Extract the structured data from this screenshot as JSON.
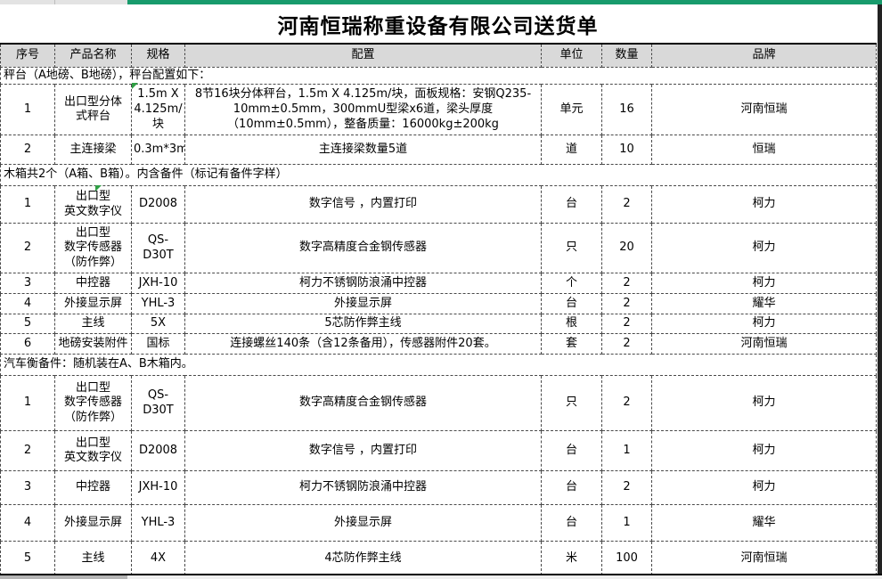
{
  "title": "河南恒瑞称重设备有限公司送货单",
  "columns": [
    "序号",
    "产品名称",
    "规格",
    "配置",
    "单位",
    "数量",
    "品牌"
  ],
  "sections": [
    {
      "header": "秤台（A地磅、B地磅），秤台配置如下：",
      "rows": [
        {
          "no": "1",
          "name": "出口型分体\n式秤台",
          "spec": "1.5m X\n4.125m/\n块",
          "config": "8节16块分体秤台，1.5m X 4.125m/块，面板规格：安钢Q235-10mm±0.5mm，300mmU型梁x6道，梁头厚度（10mm±0.5mm），整备质量：16000kg±200kg",
          "unit": "单元",
          "qty": "16",
          "brand": "河南恒瑞"
        },
        {
          "no": "2",
          "name": "主连接梁",
          "spec": "0.3m*3m",
          "config": "主连接梁数量5道",
          "unit": "道",
          "qty": "10",
          "brand": "恒瑞"
        }
      ]
    },
    {
      "header": "木箱共2个（A箱、B箱）。内含备件（标记有备件字样）",
      "rows": [
        {
          "no": "1",
          "name": "出口型\n英文数字仪",
          "spec": "D2008",
          "config": "数字信号 ，内置打印",
          "unit": "台",
          "qty": "2",
          "brand": "柯力"
        },
        {
          "no": "2",
          "name": "出口型\n数字传感器\n（防作弊）",
          "spec": "QS-D30T",
          "config": "数字高精度合金钢传感器",
          "unit": "只",
          "qty": "20",
          "brand": "柯力"
        },
        {
          "no": "3",
          "name": "中控器",
          "spec": "JXH-10",
          "config": "柯力不锈钢防浪涌中控器",
          "unit": "个",
          "qty": "2",
          "brand": "柯力"
        },
        {
          "no": "4",
          "name": "外接显示屏",
          "spec": "YHL-3",
          "config": "外接显示屏",
          "unit": "台",
          "qty": "2",
          "brand": "耀华"
        },
        {
          "no": "5",
          "name": "主线",
          "spec": "5X",
          "config": "5芯防作弊主线",
          "unit": "根",
          "qty": "2",
          "brand": "柯力"
        },
        {
          "no": "6",
          "name": "地磅安装附件",
          "spec": "国标",
          "config": "连接螺丝140条（含12条备用），传感器附件20套。",
          "unit": "套",
          "qty": "2",
          "brand": "河南恒瑞"
        }
      ]
    },
    {
      "header": "汽车衡备件：随机装在A、B木箱内。",
      "rows": [
        {
          "no": "1",
          "name": "出口型\n数字传感器\n（防作弊）",
          "spec": "QS-D30T",
          "config": "数字高精度合金钢传感器",
          "unit": "只",
          "qty": "2",
          "brand": "柯力"
        },
        {
          "no": "2",
          "name": "出口型\n英文数字仪",
          "spec": "D2008",
          "config": "数字信号 ，内置打印",
          "unit": "台",
          "qty": "1",
          "brand": "柯力"
        },
        {
          "no": "3",
          "name": "中控器",
          "spec": "JXH-10",
          "config": "柯力不锈钢防浪涌中控器",
          "unit": "台",
          "qty": "2",
          "brand": "柯力"
        },
        {
          "no": "4",
          "name": "外接显示屏",
          "spec": "YHL-3",
          "config": "外接显示屏",
          "unit": "台",
          "qty": "1",
          "brand": "耀华"
        },
        {
          "no": "5",
          "name": "主线",
          "spec": "4X",
          "config": "4芯防作弊主线",
          "unit": "米",
          "qty": "100",
          "brand": "河南恒瑞"
        }
      ]
    }
  ],
  "colors": {
    "topbar_green": "#189b6c",
    "header_bg": "#d9d9d9",
    "error_indicator_green": "#2f9e44"
  }
}
